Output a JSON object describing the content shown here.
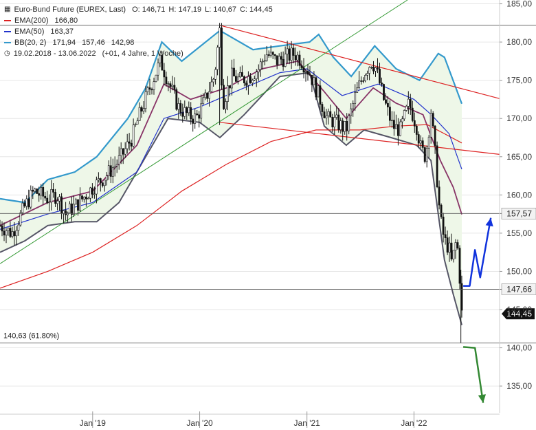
{
  "header": {
    "instrument": "Euro-Bund Future (EUREX, Last)",
    "ohlc": [
      "O: 146,71",
      "H: 147,19",
      "L: 140,67",
      "C: 144,45"
    ]
  },
  "legend": [
    {
      "label": "EMA(200)",
      "values": [
        "166,80"
      ],
      "color": "#dd2222"
    },
    {
      "label": "EMA(50)",
      "values": [
        "163,37"
      ],
      "color": "#2233cc"
    },
    {
      "label": "BB(20, 2)",
      "values": [
        "171,94",
        "157,46",
        "142,98"
      ],
      "color": "#3399cc"
    },
    {
      "label": "19.02.2018 - 13.06.2022",
      "values": [
        "(+01, 4 Jahre, 1 Woche)"
      ],
      "icon": "clock-icon"
    }
  ],
  "colors": {
    "price": "#111111",
    "ema200": "#dd2222",
    "ema50": "#2233cc",
    "bb_upper": "#3399cc",
    "bb_lower": "#555566",
    "bb_mid": "#883366",
    "bb_fill": "#eef7e8",
    "channel": "#dd2222",
    "uptrend": "#339933",
    "arrow_up": "#1133dd",
    "arrow_down": "#338833",
    "hline": "#555555",
    "grid": "#e6e6e6"
  },
  "chart_data": {
    "type": "line",
    "y_axis": {
      "ylim": [
        131.5,
        185.5
      ],
      "ticks": [
        135,
        140,
        145,
        150,
        155,
        160,
        165,
        170,
        175,
        180,
        185
      ],
      "tick_labels": [
        "135,00",
        "140,00",
        "145,00",
        "150,00",
        "155,00",
        "160,00",
        "165,00",
        "170,00",
        "175,00",
        "180,00",
        "185,00"
      ],
      "side": "right"
    },
    "x_axis": {
      "xlim": [
        "2018-02-19",
        "2022-10-20"
      ],
      "ticks": [
        "2019-01-01",
        "2020-01-01",
        "2021-01-01",
        "2022-01-01"
      ],
      "tick_labels": [
        "Jan '19",
        "Jan '20",
        "Jan '21",
        "Jan '22"
      ]
    },
    "price": [
      [
        "2018-02-19",
        156.0
      ],
      [
        "2018-04-01",
        155.0
      ],
      [
        "2018-05-15",
        158.5
      ],
      [
        "2018-06-15",
        160.5
      ],
      [
        "2018-08-01",
        159.5
      ],
      [
        "2018-09-01",
        160.0
      ],
      [
        "2018-10-01",
        157.5
      ],
      [
        "2018-11-15",
        159.0
      ],
      [
        "2019-01-01",
        161.0
      ],
      [
        "2019-02-15",
        162.5
      ],
      [
        "2019-04-01",
        164.5
      ],
      [
        "2019-05-15",
        167.5
      ],
      [
        "2019-06-15",
        171.0
      ],
      [
        "2019-07-15",
        174.0
      ],
      [
        "2019-08-20",
        177.5
      ],
      [
        "2019-09-15",
        175.0
      ],
      [
        "2019-10-20",
        171.5
      ],
      [
        "2019-11-20",
        170.5
      ],
      [
        "2019-12-20",
        170.0
      ],
      [
        "2020-01-20",
        172.5
      ],
      [
        "2020-02-20",
        175.5
      ],
      [
        "2020-03-09",
        181.5
      ],
      [
        "2020-03-20",
        172.0
      ],
      [
        "2020-04-20",
        175.5
      ],
      [
        "2020-05-20",
        175.0
      ],
      [
        "2020-06-20",
        175.5
      ],
      [
        "2020-07-20",
        176.5
      ],
      [
        "2020-08-15",
        178.5
      ],
      [
        "2020-09-20",
        177.5
      ],
      [
        "2020-10-20",
        178.0
      ],
      [
        "2020-11-20",
        178.5
      ],
      [
        "2020-12-15",
        177.5
      ],
      [
        "2021-01-10",
        176.0
      ],
      [
        "2021-02-10",
        173.0
      ],
      [
        "2021-03-10",
        170.0
      ],
      [
        "2021-04-10",
        169.5
      ],
      [
        "2021-05-15",
        168.5
      ],
      [
        "2021-06-15",
        173.0
      ],
      [
        "2021-07-15",
        176.0
      ],
      [
        "2021-08-10",
        177.5
      ],
      [
        "2021-08-25",
        176.5
      ],
      [
        "2021-09-20",
        172.5
      ],
      [
        "2021-10-20",
        169.0
      ],
      [
        "2021-11-15",
        168.5
      ],
      [
        "2021-12-15",
        172.0
      ],
      [
        "2022-01-10",
        169.0
      ],
      [
        "2022-01-25",
        166.0
      ],
      [
        "2022-02-10",
        165.0
      ],
      [
        "2022-02-28",
        171.0
      ],
      [
        "2022-03-15",
        165.0
      ],
      [
        "2022-03-31",
        157.0
      ],
      [
        "2022-04-15",
        154.0
      ],
      [
        "2022-05-01",
        153.0
      ],
      [
        "2022-05-10",
        151.0
      ],
      [
        "2022-05-25",
        154.0
      ],
      [
        "2022-06-03",
        152.0
      ],
      [
        "2022-06-10",
        145.5
      ],
      [
        "2022-06-13",
        144.45
      ]
    ],
    "ema200": [
      [
        "2018-02-19",
        147.8
      ],
      [
        "2018-08-01",
        150.0
      ],
      [
        "2019-01-01",
        152.5
      ],
      [
        "2019-06-01",
        156.0
      ],
      [
        "2019-11-01",
        160.5
      ],
      [
        "2020-04-01",
        164.0
      ],
      [
        "2020-09-01",
        167.0
      ],
      [
        "2021-02-01",
        168.5
      ],
      [
        "2021-07-01",
        168.5
      ],
      [
        "2021-11-01",
        169.0
      ],
      [
        "2022-02-15",
        169.2
      ],
      [
        "2022-04-15",
        168.0
      ],
      [
        "2022-06-13",
        166.8
      ]
    ],
    "ema50": [
      [
        "2018-02-19",
        155.5
      ],
      [
        "2018-08-01",
        157.5
      ],
      [
        "2019-01-01",
        159.0
      ],
      [
        "2019-06-01",
        163.0
      ],
      [
        "2019-09-01",
        170.0
      ],
      [
        "2020-01-01",
        171.5
      ],
      [
        "2020-05-01",
        173.5
      ],
      [
        "2020-10-01",
        176.0
      ],
      [
        "2021-01-01",
        176.5
      ],
      [
        "2021-05-01",
        173.0
      ],
      [
        "2021-09-01",
        174.5
      ],
      [
        "2022-01-01",
        172.5
      ],
      [
        "2022-03-01",
        170.5
      ],
      [
        "2022-05-01",
        168.0
      ],
      [
        "2022-06-13",
        163.37
      ]
    ],
    "bb_upper": [
      [
        "2018-02-19",
        159.5
      ],
      [
        "2018-05-15",
        159.0
      ],
      [
        "2018-08-01",
        162.0
      ],
      [
        "2018-11-01",
        163.0
      ],
      [
        "2019-01-15",
        165.0
      ],
      [
        "2019-05-01",
        170.0
      ],
      [
        "2019-07-01",
        174.0
      ],
      [
        "2019-08-25",
        180.0
      ],
      [
        "2019-11-01",
        177.5
      ],
      [
        "2020-03-10",
        181.5
      ],
      [
        "2020-07-01",
        179.0
      ],
      [
        "2020-10-01",
        179.5
      ],
      [
        "2021-01-10",
        180.0
      ],
      [
        "2021-02-10",
        181.0
      ],
      [
        "2021-04-01",
        178.0
      ],
      [
        "2021-06-01",
        175.5
      ],
      [
        "2021-08-20",
        179.5
      ],
      [
        "2021-11-01",
        176.5
      ],
      [
        "2022-01-20",
        175.0
      ],
      [
        "2022-03-25",
        178.5
      ],
      [
        "2022-04-15",
        178.0
      ],
      [
        "2022-06-13",
        171.94
      ]
    ],
    "bb_mid": [
      [
        "2018-02-19",
        156.0
      ],
      [
        "2018-08-01",
        159.0
      ],
      [
        "2019-01-01",
        160.5
      ],
      [
        "2019-06-01",
        166.5
      ],
      [
        "2019-09-01",
        174.5
      ],
      [
        "2019-12-01",
        172.5
      ],
      [
        "2020-04-01",
        174.0
      ],
      [
        "2020-08-01",
        176.5
      ],
      [
        "2020-12-01",
        177.5
      ],
      [
        "2021-03-01",
        173.5
      ],
      [
        "2021-05-15",
        170.0
      ],
      [
        "2021-08-15",
        174.0
      ],
      [
        "2021-11-01",
        172.0
      ],
      [
        "2022-02-01",
        170.5
      ],
      [
        "2022-04-01",
        164.5
      ],
      [
        "2022-05-15",
        161.0
      ],
      [
        "2022-06-13",
        157.46
      ]
    ],
    "bb_lower": [
      [
        "2018-02-19",
        152.5
      ],
      [
        "2018-05-15",
        154.0
      ],
      [
        "2018-08-01",
        156.0
      ],
      [
        "2018-11-01",
        156.5
      ],
      [
        "2019-01-15",
        156.5
      ],
      [
        "2019-04-01",
        159.0
      ],
      [
        "2019-07-01",
        165.0
      ],
      [
        "2019-09-15",
        170.0
      ],
      [
        "2020-01-01",
        169.5
      ],
      [
        "2020-03-10",
        167.5
      ],
      [
        "2020-06-01",
        170.5
      ],
      [
        "2020-10-01",
        175.5
      ],
      [
        "2021-01-10",
        176.0
      ],
      [
        "2021-03-01",
        169.0
      ],
      [
        "2021-05-15",
        166.5
      ],
      [
        "2021-07-15",
        168.5
      ],
      [
        "2021-10-15",
        167.5
      ],
      [
        "2022-01-10",
        166.5
      ],
      [
        "2022-02-28",
        164.5
      ],
      [
        "2022-04-15",
        151.5
      ],
      [
        "2022-05-15",
        147.0
      ],
      [
        "2022-06-13",
        142.98
      ]
    ],
    "upper_channel": [
      [
        "2020-03-09",
        182.2
      ],
      [
        "2022-10-20",
        172.6
      ]
    ],
    "lower_channel": [
      [
        "2020-03-09",
        169.5
      ],
      [
        "2022-10-20",
        165.3
      ]
    ],
    "uptrend": [
      [
        "2018-02-19",
        151.0
      ],
      [
        "2021-12-10",
        185.5
      ]
    ],
    "hlines": [
      {
        "value": 157.57,
        "label": "157,57",
        "dark": false
      },
      {
        "value": 147.66,
        "label": "147,66",
        "dark": false
      },
      {
        "value": 140.63,
        "label": "140,63 (61.80%)",
        "dark": false,
        "label_left": true
      },
      {
        "value": 182.2,
        "label": "",
        "dark": false
      }
    ],
    "last_price_label": "144,45",
    "arrow_up": [
      [
        "2022-06-18",
        148.1
      ],
      [
        "2022-07-10",
        148.1
      ],
      [
        "2022-07-28",
        152.8
      ],
      [
        "2022-08-15",
        149.2
      ],
      [
        "2022-09-20",
        157.0
      ]
    ],
    "arrow_down": [
      [
        "2022-06-18",
        140.1
      ],
      [
        "2022-07-28",
        140.0
      ],
      [
        "2022-08-25",
        132.8
      ]
    ]
  }
}
